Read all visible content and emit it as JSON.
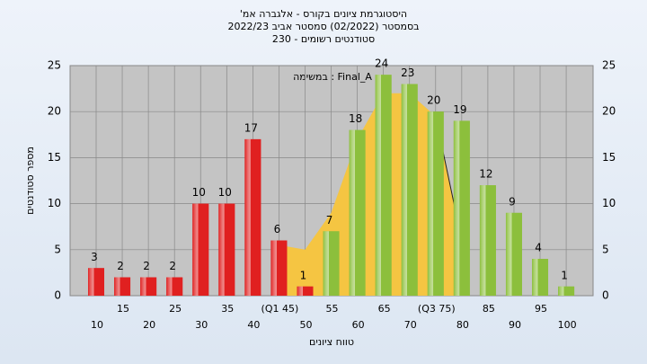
{
  "chart_data": {
    "type": "bar",
    "title": "היסטוגרמת ציונים בקורס - אלגברה אמ'",
    "subtitle": "בסמסטר (02/2022) סמסטר אביב 2022/23",
    "subtitle2": "סטודנטים רשומים - 230",
    "annotation": "במשימה : Final_A",
    "x_label": "טווח ציונים",
    "y_label": "מספר סטודנטים",
    "categories": [
      "10",
      "15",
      "20",
      "25",
      "30",
      "35",
      "40",
      "(Q1 45)",
      "50",
      "55",
      "60",
      "65",
      "70",
      "(Q3 75)",
      "80",
      "85",
      "90",
      "95",
      "100"
    ],
    "values": [
      3,
      2,
      2,
      2,
      10,
      10,
      17,
      6,
      1,
      7,
      18,
      24,
      23,
      20,
      19,
      12,
      9,
      4,
      1
    ],
    "colors": [
      "#e02020",
      "#e02020",
      "#e02020",
      "#e02020",
      "#e02020",
      "#e02020",
      "#e02020",
      "#e02020",
      "#e02020",
      "#8cbf3c",
      "#8cbf3c",
      "#8cbf3c",
      "#8cbf3c",
      "#8cbf3c",
      "#8cbf3c",
      "#8cbf3c",
      "#8cbf3c",
      "#8cbf3c",
      "#8cbf3c"
    ],
    "area": {
      "color": "#f5c542",
      "values": [
        null,
        null,
        null,
        null,
        null,
        null,
        null,
        5.5,
        5,
        9,
        17,
        22,
        22,
        19.5,
        6,
        null,
        null,
        null,
        null
      ]
    },
    "ylim": [
      0,
      25
    ],
    "yticks": [
      0,
      5,
      10,
      15,
      20,
      25
    ],
    "grid": true
  }
}
